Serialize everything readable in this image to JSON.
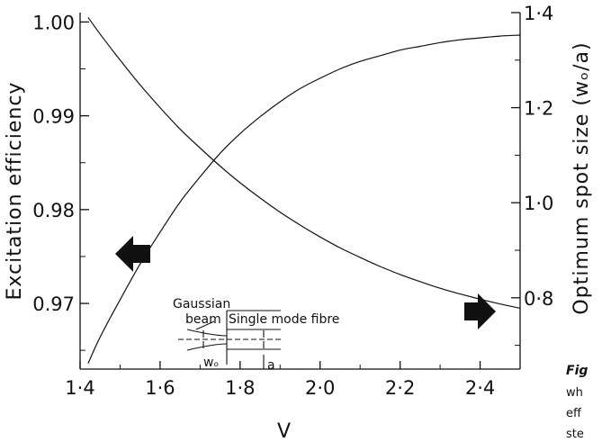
{
  "chart_data": {
    "type": "line",
    "xlabel": "V",
    "ylabel_left": "Excitation efficiency",
    "ylabel_right": "Optimum spot size (wₒ/a)",
    "xlim": [
      1.4,
      2.5
    ],
    "ylim_left": [
      0.963,
      1.001
    ],
    "ylim_right": [
      0.65,
      1.4
    ],
    "x_ticks": [
      "1·4",
      "1·6",
      "1·8",
      "2·0",
      "2·2",
      "2·4"
    ],
    "y_ticks_left": [
      "1.00",
      "0.99",
      "0.98",
      "0.97"
    ],
    "y_ticks_right": [
      "1·4",
      "1·2",
      "1·0",
      "0·8"
    ],
    "grid": false,
    "series": [
      {
        "axis": "left",
        "x": [
          1.42,
          1.45,
          1.5,
          1.55,
          1.6,
          1.65,
          1.7,
          1.75,
          1.8,
          1.85,
          1.9,
          1.95,
          2.0,
          2.05,
          2.1,
          2.15,
          2.2,
          2.25,
          2.3,
          2.35,
          2.4,
          2.45,
          2.5
        ],
        "y": [
          0.9636,
          0.9664,
          0.9704,
          0.9742,
          0.9776,
          0.9808,
          0.9835,
          0.986,
          0.9881,
          0.9899,
          0.9915,
          0.9929,
          0.994,
          0.995,
          0.9958,
          0.9964,
          0.997,
          0.9974,
          0.9978,
          0.9981,
          0.9983,
          0.9985,
          0.9986
        ]
      },
      {
        "axis": "right",
        "x": [
          1.42,
          1.45,
          1.5,
          1.55,
          1.6,
          1.65,
          1.7,
          1.75,
          1.8,
          1.85,
          1.9,
          1.95,
          2.0,
          2.05,
          2.1,
          2.15,
          2.2,
          2.25,
          2.3,
          2.35,
          2.4,
          2.45,
          2.5
        ],
        "y": [
          1.39,
          1.355,
          1.3,
          1.248,
          1.2,
          1.155,
          1.115,
          1.077,
          1.042,
          1.01,
          0.98,
          0.953,
          0.928,
          0.905,
          0.885,
          0.866,
          0.849,
          0.834,
          0.82,
          0.808,
          0.797,
          0.787,
          0.778
        ]
      }
    ],
    "inset": {
      "label_gaussian": "Gaussian",
      "label_beam": "beam",
      "label_fibre": "Single mode fibre",
      "label_w": "wₒ",
      "label_a": "a"
    },
    "caption_fragments": [
      "Fig",
      "wh",
      "eff",
      "ste"
    ]
  }
}
